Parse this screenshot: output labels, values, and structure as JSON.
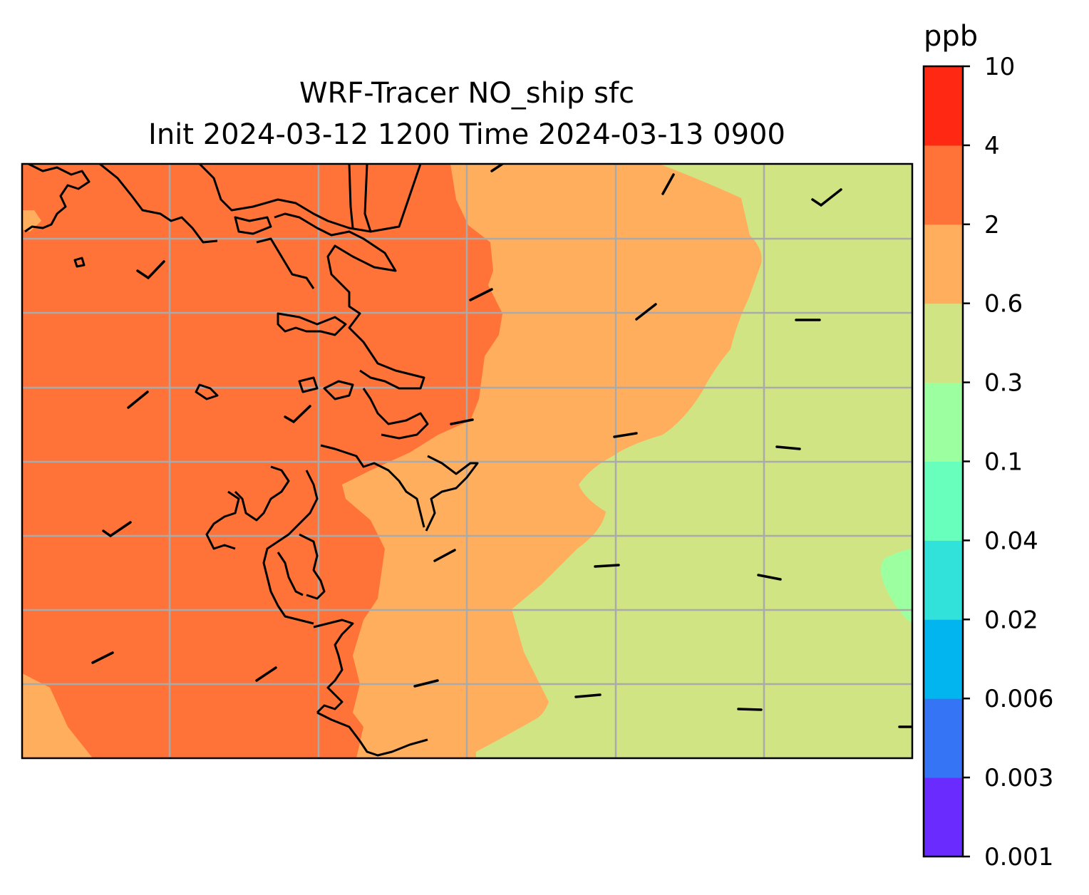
{
  "title_line1": "WRF-Tracer NO_ship sfc",
  "title_line2": "Init 2024-03-12 1200 Time 2024-03-13 0900",
  "colorbar": {
    "unit": "ppb",
    "tick_labels": [
      "0.001",
      "0.003",
      "0.006",
      "0.02",
      "0.04",
      "0.1",
      "0.3",
      "0.6",
      "2",
      "4",
      "10"
    ],
    "colors": [
      "#6a2bff",
      "#3575f5",
      "#03b5ee",
      "#30e2d9",
      "#68ffbd",
      "#9cffa0",
      "#d0e484",
      "#ffae5e",
      "#ff7339",
      "#ff2812"
    ]
  },
  "map": {
    "gridlines": true,
    "gridline_color": "#aaaaaa",
    "coastline_color": "#000000",
    "region_levels": {
      "west": "2 to 4",
      "middle": "0.6 to 2",
      "east": "0.3 to 0.6",
      "far_east_patch": "0.1 to 0.3"
    }
  }
}
